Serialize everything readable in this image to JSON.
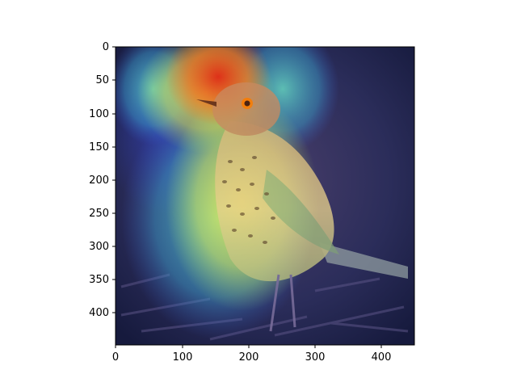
{
  "figure": {
    "subject": "bird",
    "overlay": "attention heatmap",
    "colormap": "jet"
  },
  "axes": {
    "x_ticks": [
      "0",
      "100",
      "200",
      "300",
      "400"
    ],
    "y_ticks": [
      "0",
      "50",
      "100",
      "150",
      "200",
      "250",
      "300",
      "350",
      "400"
    ],
    "x_range": [
      0,
      450
    ],
    "y_range": [
      0,
      450
    ]
  },
  "colors": {
    "background_dark": "#1f2350",
    "ground": "#2d2b55",
    "bird_body": "#d8c6a6",
    "bird_head": "#c98a5f",
    "eye_ring": "#ff7a00",
    "heat_red": "#e33b1c",
    "heat_yellow": "#f6e44a",
    "heat_cyan": "#58d7c9",
    "heat_blue": "#2e46d2"
  }
}
